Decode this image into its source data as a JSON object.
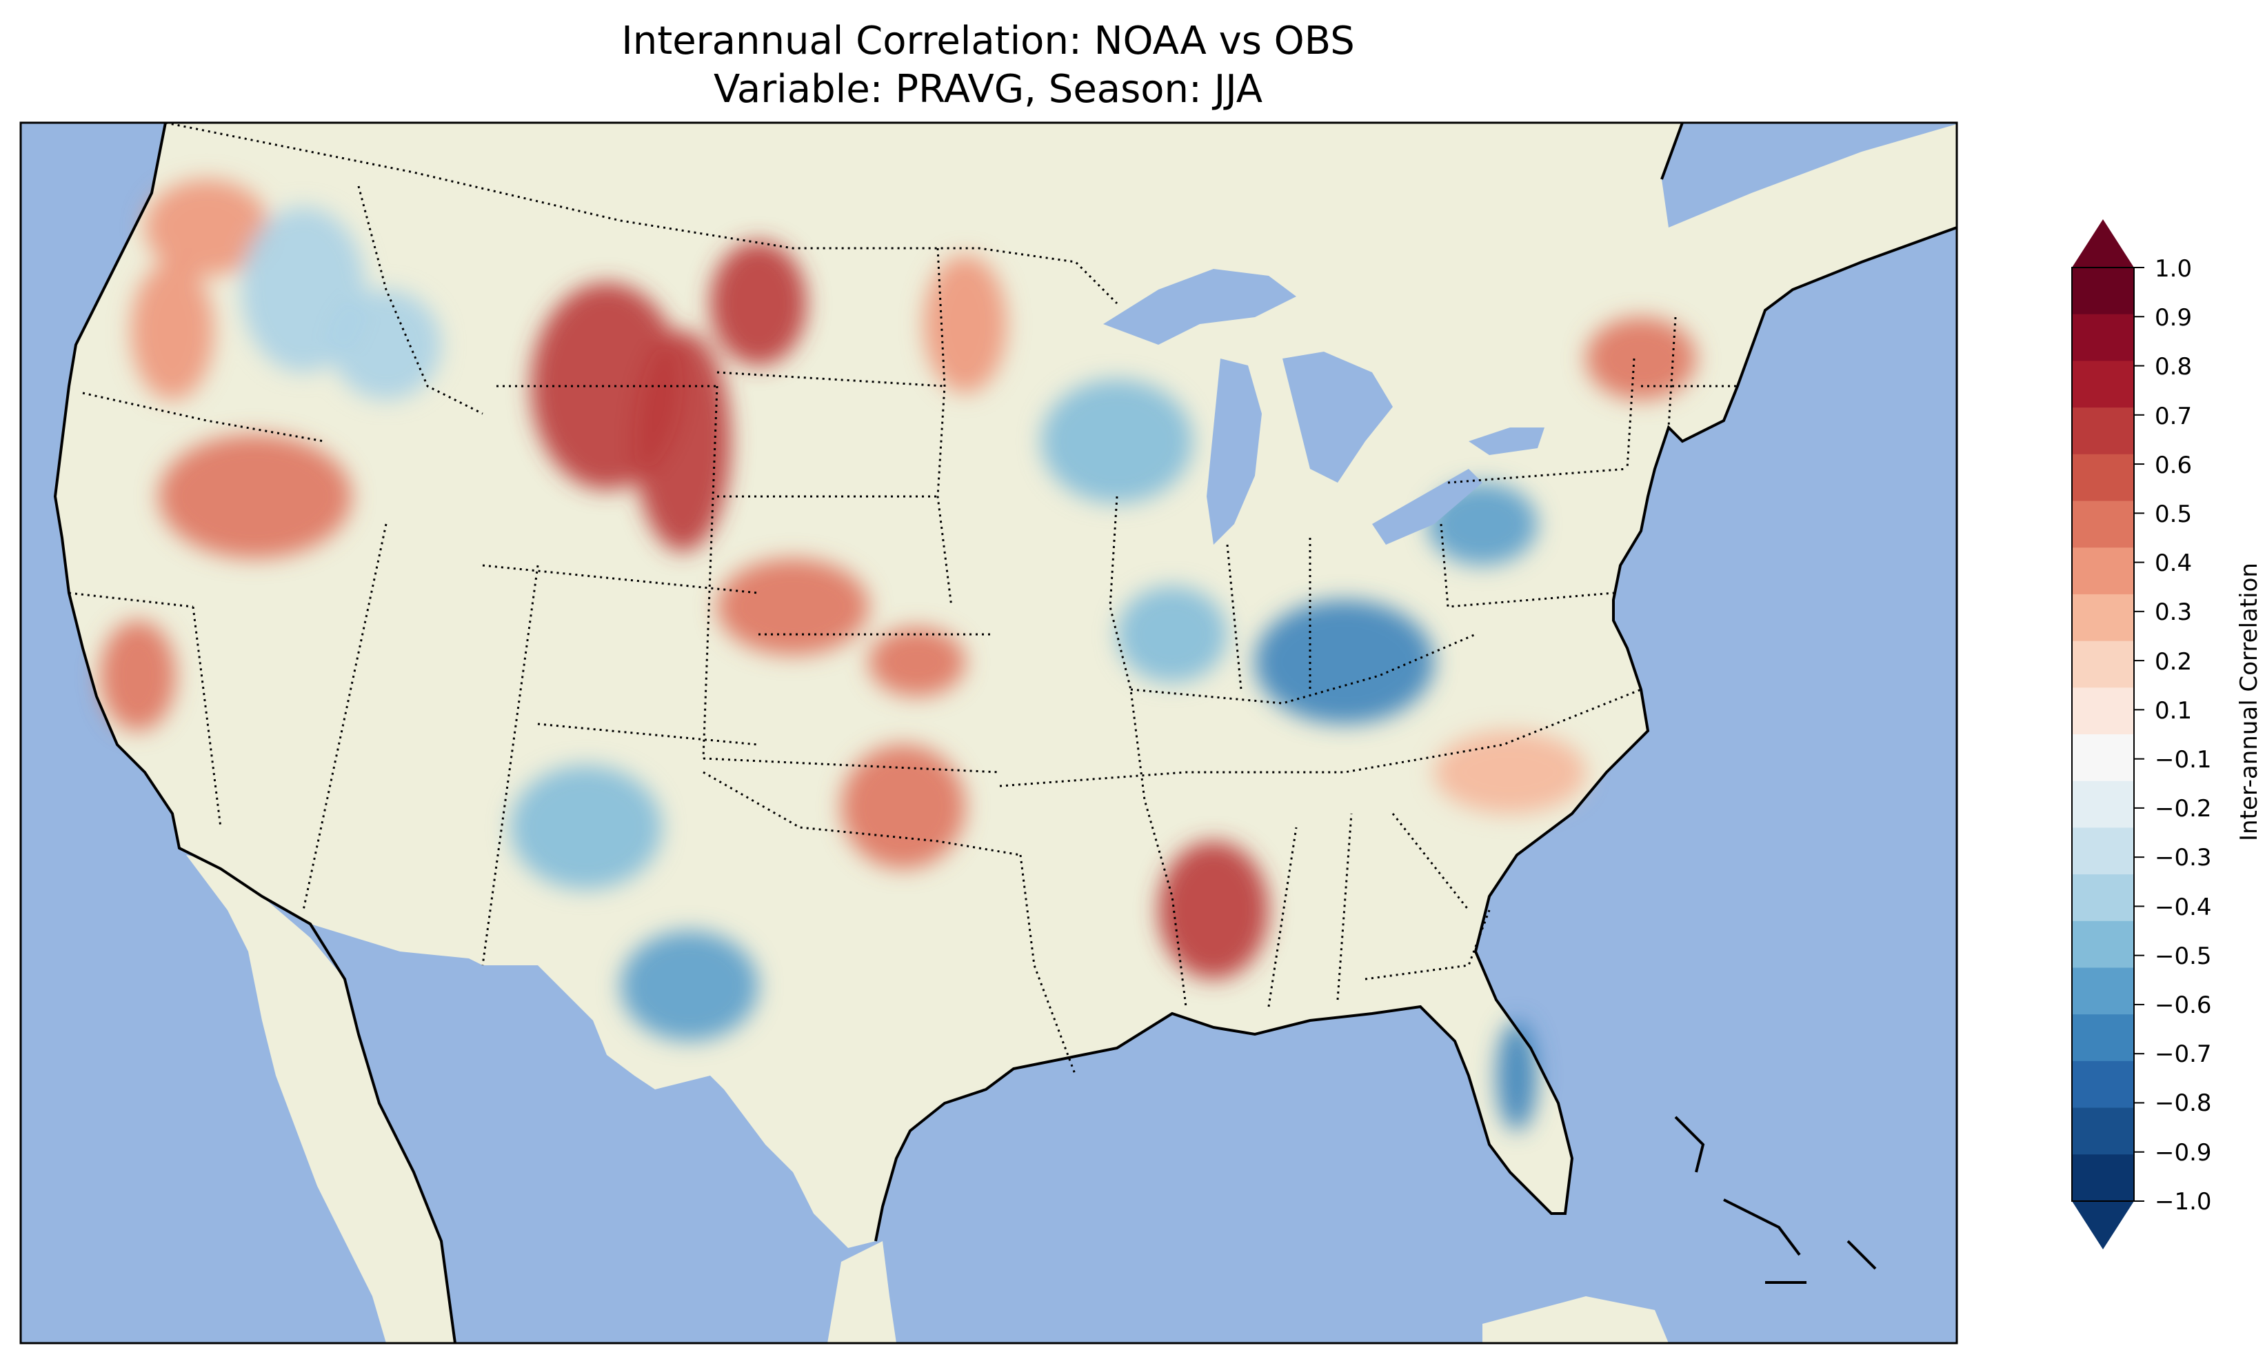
{
  "title": {
    "line1": "Interannual Correlation: NOAA vs OBS",
    "line2": "Variable: PRAVG, Season: JJA"
  },
  "colors": {
    "ocean": "#97b6e1",
    "land": "#efefdb",
    "coast": "#000000",
    "state_border": "#000000"
  },
  "colorbar": {
    "label": "Inter-annual Correlation",
    "extend": "both",
    "ticks": [
      "1.0",
      "0.9",
      "0.8",
      "0.7",
      "0.6",
      "0.5",
      "0.4",
      "0.3",
      "0.2",
      "0.1",
      "−0.1",
      "−0.2",
      "−0.3",
      "−0.4",
      "−0.5",
      "−0.6",
      "−0.7",
      "−0.8",
      "−0.9",
      "−1.0"
    ],
    "colors": [
      "#690320",
      "#8c0c26",
      "#a61b2c",
      "#ba3b3b",
      "#cc5648",
      "#de7660",
      "#ed977c",
      "#f5b79b",
      "#f9d4c0",
      "#fbe7dd",
      "#f7f7f7",
      "#e3eef3",
      "#c9e1ed",
      "#abd2e5",
      "#83bcd9",
      "#5b9fcb",
      "#3d84bb",
      "#2867a9",
      "#19508c",
      "#0b366e"
    ]
  },
  "map": {
    "projection": "Lambert Conformal Conic",
    "region": "Contiguous United States",
    "field_regions": [
      {
        "name": "Pacific Northwest coast",
        "value": 0.4
      },
      {
        "name": "Idaho / western Montana",
        "value": -0.3
      },
      {
        "name": "Montana / Wyoming",
        "value": 0.7
      },
      {
        "name": "northern Nevada / Oregon",
        "value": 0.5
      },
      {
        "name": "California central coast",
        "value": 0.5
      },
      {
        "name": "Colorado / Kansas",
        "value": 0.5
      },
      {
        "name": "Minnesota",
        "value": 0.4
      },
      {
        "name": "Wisconsin / Iowa",
        "value": -0.4
      },
      {
        "name": "Ohio Valley / Kentucky",
        "value": -0.6
      },
      {
        "name": "Pennsylvania",
        "value": -0.5
      },
      {
        "name": "New England",
        "value": 0.5
      },
      {
        "name": "Arizona / New Mexico",
        "value": -0.4
      },
      {
        "name": "western Texas",
        "value": -0.5
      },
      {
        "name": "Oklahoma / north Texas",
        "value": 0.5
      },
      {
        "name": "Mississippi / Alabama",
        "value": 0.7
      },
      {
        "name": "Carolinas / Georgia",
        "value": 0.3
      },
      {
        "name": "Florida peninsula",
        "value": -0.6
      }
    ]
  }
}
